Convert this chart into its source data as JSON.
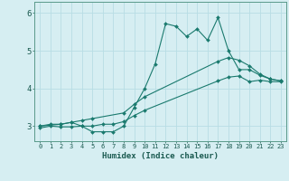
{
  "xlabel": "Humidex (Indice chaleur)",
  "background_color": "#d6eef2",
  "grid_color": "#c8e8ec",
  "line_color": "#1a7a6e",
  "xlim": [
    -0.5,
    23.5
  ],
  "ylim": [
    2.6,
    6.3
  ],
  "xticks": [
    0,
    1,
    2,
    3,
    4,
    5,
    6,
    7,
    8,
    9,
    10,
    11,
    12,
    13,
    14,
    15,
    16,
    17,
    18,
    19,
    20,
    21,
    22,
    23
  ],
  "yticks": [
    3,
    4,
    5,
    6
  ],
  "line1_x": [
    0,
    1,
    2,
    3,
    4,
    5,
    6,
    7,
    8,
    9,
    10,
    11,
    12,
    13,
    14,
    15,
    16,
    17,
    18,
    19,
    20,
    21,
    22,
    23
  ],
  "line1_y": [
    3.0,
    3.05,
    3.05,
    3.1,
    3.0,
    2.85,
    2.85,
    2.85,
    3.0,
    3.5,
    4.0,
    4.65,
    5.72,
    5.65,
    5.38,
    5.58,
    5.28,
    5.88,
    5.0,
    4.5,
    4.5,
    4.35,
    4.25,
    4.2
  ],
  "line2_x": [
    0,
    2,
    3,
    4,
    5,
    8,
    9,
    10,
    17,
    18,
    19,
    20,
    21,
    22,
    23
  ],
  "line2_y": [
    3.0,
    3.05,
    3.1,
    3.15,
    3.2,
    3.35,
    3.58,
    3.78,
    4.72,
    4.82,
    4.75,
    4.6,
    4.38,
    4.25,
    4.2
  ],
  "line3_x": [
    0,
    1,
    2,
    3,
    4,
    5,
    6,
    7,
    8,
    9,
    10,
    17,
    18,
    19,
    20,
    21,
    22,
    23
  ],
  "line3_y": [
    2.95,
    3.0,
    2.98,
    2.98,
    3.0,
    3.0,
    3.05,
    3.05,
    3.12,
    3.28,
    3.42,
    4.2,
    4.3,
    4.33,
    4.18,
    4.22,
    4.18,
    4.18
  ]
}
